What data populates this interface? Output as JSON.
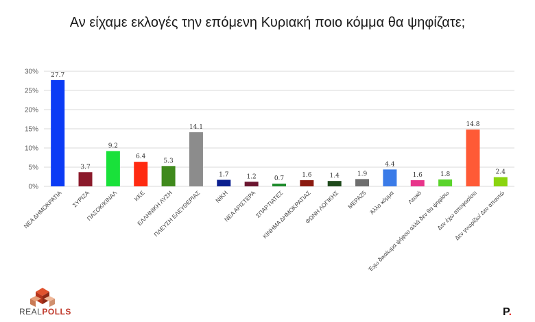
{
  "chart_data": {
    "type": "bar",
    "title": "Αν είχαμε εκλογές την επόμενη Κυριακή ποιο κόμμα θα ψηφίζατε;",
    "categories": [
      "ΝΕΑ ΔΗΜΟΚΡΑΤΙΑ",
      "ΣΥΡΙΖΑ",
      "ΠΑΣΟΚ/ΚΙΝΑΛ",
      "ΚΚΕ",
      "ΕΛΛΗΝΙΚΗ ΛΥΣΗ",
      "ΠΛΕΥΣΗ ΕΛΕΥΘΕΡΙΑΣ",
      "ΝΙΚΗ",
      "ΝΕΑ ΑΡΙΣΤΕΡΑ",
      "ΣΠΑΡΤΙΑΤΕΣ",
      "ΚΙΝΗΜΑ ΔΗΜΟΚΡΑΤΙΑΣ",
      "ΦΩΝΗ ΛΟΓΙΚΗΣ",
      "ΜΕΡΑ25",
      "Άλλο κόμμα",
      "Λευκό",
      "Έχω δικαίωμα ψήφου αλλά δεν θα ψηφίσω",
      "Δεν έχω αποφασίσει",
      "Δεν γνωρίζω/ Δεν απαντώ"
    ],
    "values": [
      27.7,
      3.7,
      9.2,
      6.4,
      5.3,
      14.1,
      1.7,
      1.2,
      0.7,
      1.6,
      1.4,
      1.9,
      4.4,
      1.6,
      1.8,
      14.8,
      2.4
    ],
    "value_labels": [
      "27.7",
      "3.7",
      "9.2",
      "6.4",
      "5.3",
      "14.1",
      "1.7",
      "1.2",
      "0.7",
      "1.6",
      "1.4",
      "1.9",
      "4.4",
      "1.6",
      "1.8",
      "14.8",
      "2.4"
    ],
    "colors": [
      "#0b3bf5",
      "#8b1a2b",
      "#19e13a",
      "#ff2a10",
      "#3f8a1c",
      "#8c8c8c",
      "#0b1f8f",
      "#6b1630",
      "#1c8a2a",
      "#8b1a10",
      "#1f4a1c",
      "#6e6e6e",
      "#3a7be8",
      "#e8348a",
      "#5ad42c",
      "#ff5a36",
      "#8ad40e"
    ],
    "yticks": [
      "0%",
      "5%",
      "10%",
      "15%",
      "20%",
      "25%",
      "30%"
    ],
    "ylim": [
      0,
      30
    ],
    "grid": true
  },
  "branding": {
    "logo_text_a": "REAL",
    "logo_text_b": "POLLS",
    "mark": "P",
    "mark_dot": "."
  }
}
